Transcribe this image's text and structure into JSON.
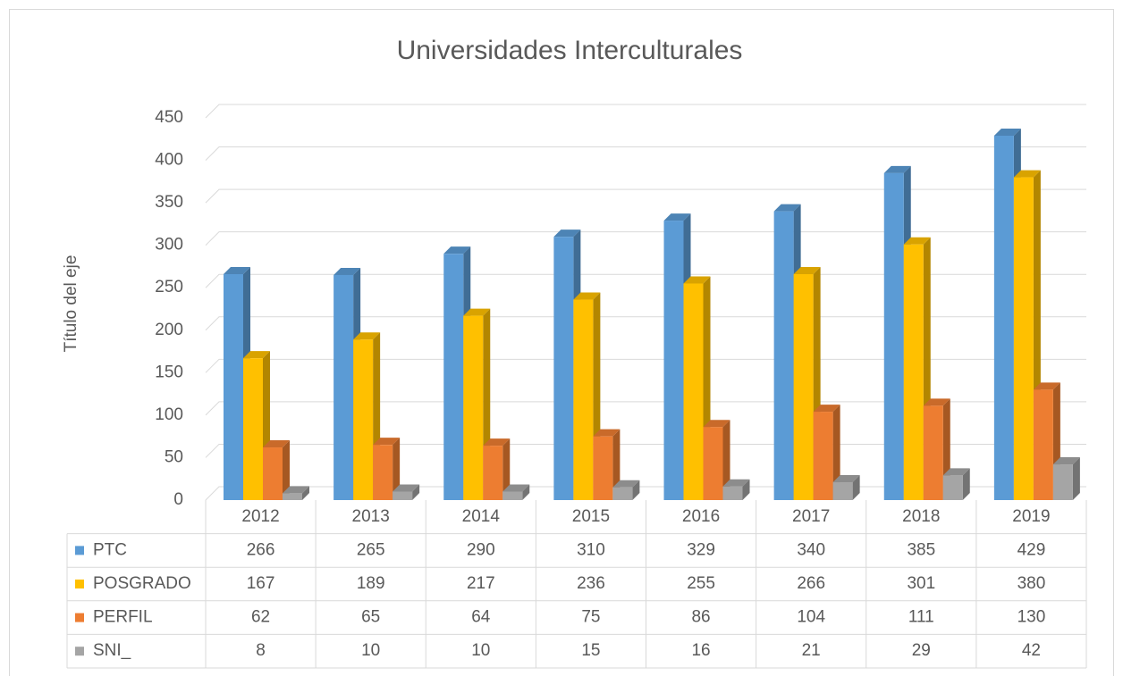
{
  "chart_data": {
    "type": "bar",
    "title": "Universidades Interculturales",
    "y_label": "Título del eje",
    "categories": [
      "2012",
      "2013",
      "2014",
      "2015",
      "2016",
      "2017",
      "2018",
      "2019"
    ],
    "series": [
      {
        "name": "PTC",
        "color": "#5b9bd5",
        "values": [
          266,
          265,
          290,
          310,
          329,
          340,
          385,
          429
        ]
      },
      {
        "name": "POSGRADO",
        "color": "#ffc000",
        "values": [
          167,
          189,
          217,
          236,
          255,
          266,
          301,
          380
        ]
      },
      {
        "name": "PERFIL",
        "color": "#ed7d31",
        "values": [
          62,
          65,
          64,
          75,
          86,
          104,
          111,
          130
        ]
      },
      {
        "name": "SNI_",
        "color": "#a5a5a5",
        "values": [
          8,
          10,
          10,
          15,
          16,
          21,
          29,
          42
        ]
      }
    ],
    "ylim": [
      0,
      450
    ],
    "yticks": [
      0,
      50,
      100,
      150,
      200,
      250,
      300,
      350,
      400,
      450
    ],
    "grid": true
  }
}
